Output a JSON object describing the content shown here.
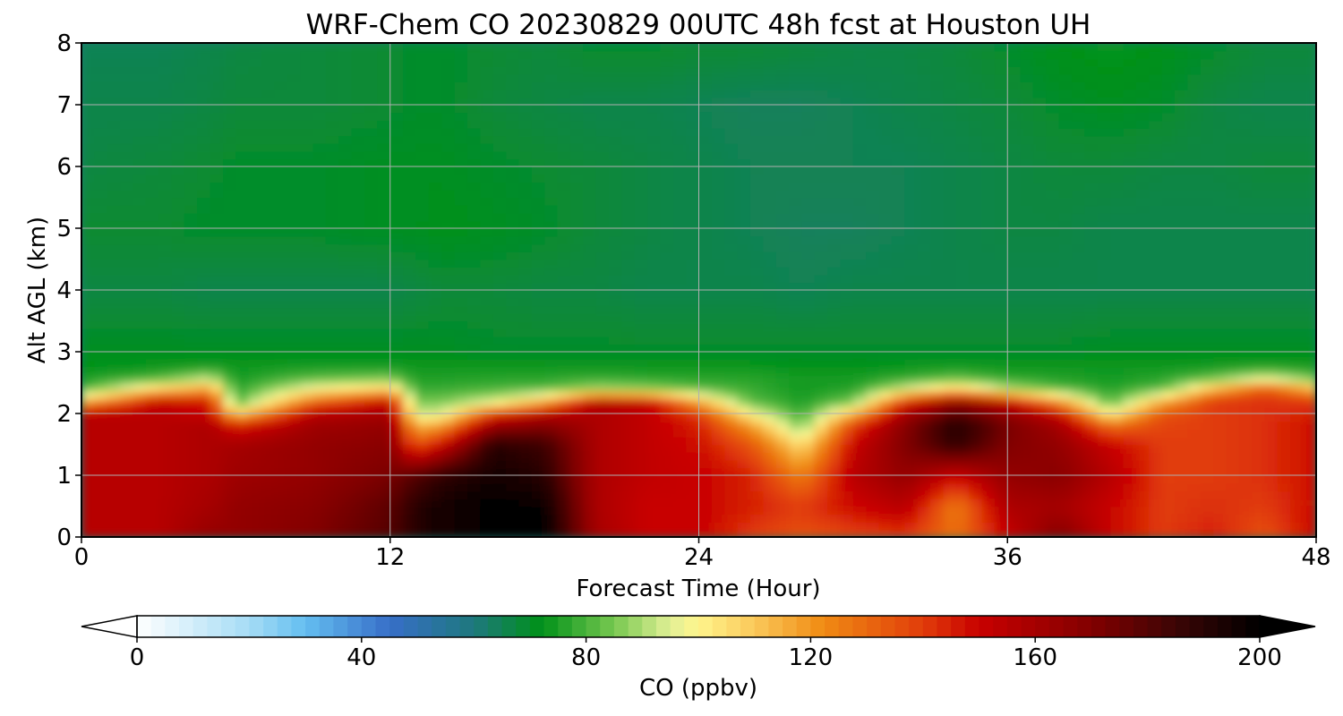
{
  "chart_data": {
    "type": "heatmap",
    "title": "WRF-Chem CO  20230829 00UTC 48h fcst at Houston UH",
    "xlabel": "Forecast Time (Hour)",
    "ylabel": "Alt AGL (km)",
    "xlim": [
      0,
      48
    ],
    "ylim": [
      0,
      8
    ],
    "xticks": [
      "0",
      "12",
      "24",
      "36",
      "48"
    ],
    "yticks": [
      "0",
      "1",
      "2",
      "3",
      "4",
      "5",
      "6",
      "7",
      "8"
    ],
    "grid": true,
    "x": [
      0,
      3,
      5,
      6,
      9,
      12,
      13,
      14,
      16,
      18,
      20,
      22,
      24,
      26,
      28,
      30,
      32,
      34,
      36,
      38,
      40,
      42,
      44,
      46,
      48
    ],
    "y": [
      0,
      0.5,
      1,
      1.5,
      1.8,
      2.0,
      2.2,
      2.4,
      2.6,
      2.8,
      3,
      4,
      5,
      6,
      7,
      8
    ],
    "values": [
      [
        155,
        155,
        165,
        165,
        170,
        180,
        190,
        195,
        200,
        200,
        160,
        150,
        150,
        140,
        135,
        138,
        140,
        128,
        150,
        170,
        150,
        140,
        145,
        135,
        150
      ],
      [
        155,
        155,
        160,
        165,
        168,
        178,
        190,
        195,
        200,
        198,
        158,
        150,
        150,
        145,
        140,
        148,
        155,
        125,
        158,
        160,
        150,
        140,
        142,
        140,
        148
      ],
      [
        155,
        155,
        158,
        162,
        165,
        172,
        180,
        188,
        195,
        190,
        158,
        152,
        150,
        145,
        125,
        155,
        165,
        150,
        165,
        168,
        155,
        140,
        140,
        142,
        148
      ],
      [
        155,
        155,
        158,
        160,
        165,
        168,
        135,
        150,
        190,
        185,
        158,
        152,
        148,
        135,
        105,
        150,
        170,
        188,
        170,
        165,
        150,
        140,
        140,
        142,
        148
      ],
      [
        155,
        155,
        158,
        145,
        162,
        165,
        115,
        120,
        165,
        170,
        158,
        152,
        145,
        120,
        85,
        140,
        168,
        192,
        172,
        160,
        130,
        138,
        140,
        142,
        148
      ],
      [
        155,
        155,
        150,
        110,
        155,
        160,
        95,
        95,
        140,
        155,
        158,
        152,
        140,
        100,
        78,
        115,
        160,
        180,
        165,
        150,
        100,
        135,
        140,
        142,
        145
      ],
      [
        115,
        150,
        145,
        80,
        130,
        150,
        85,
        85,
        95,
        115,
        155,
        150,
        115,
        82,
        75,
        85,
        140,
        165,
        150,
        120,
        80,
        115,
        140,
        142,
        140
      ],
      [
        80,
        110,
        120,
        76,
        100,
        110,
        78,
        78,
        80,
        82,
        90,
        88,
        82,
        78,
        74,
        76,
        95,
        110,
        92,
        82,
        76,
        82,
        115,
        135,
        115
      ],
      [
        74,
        78,
        88,
        74,
        80,
        82,
        75,
        75,
        76,
        76,
        77,
        76,
        76,
        76,
        74,
        74,
        76,
        80,
        76,
        75,
        74,
        76,
        80,
        90,
        80
      ],
      [
        72,
        73,
        74,
        73,
        74,
        74,
        73,
        73,
        73,
        73,
        73,
        73,
        73,
        73,
        72,
        72,
        73,
        74,
        73,
        73,
        73,
        73,
        74,
        75,
        74
      ],
      [
        71,
        71,
        71,
        71,
        71,
        71,
        71,
        71,
        70,
        70,
        70,
        70,
        70,
        70,
        70,
        70,
        70,
        70,
        70,
        70,
        71,
        71,
        71,
        71,
        71
      ],
      [
        67,
        67,
        66,
        66,
        66,
        66,
        67,
        68,
        68,
        67,
        67,
        66,
        66,
        66,
        65,
        66,
        66,
        66,
        66,
        66,
        66,
        66,
        66,
        66,
        66
      ],
      [
        69,
        69,
        70,
        70,
        70,
        71,
        71,
        72,
        71,
        70,
        68,
        67,
        66,
        65,
        64,
        64,
        65,
        66,
        67,
        67,
        66,
        66,
        66,
        66,
        66
      ],
      [
        67,
        68,
        69,
        70,
        70,
        71,
        71,
        71,
        70,
        69,
        68,
        67,
        66,
        65,
        65,
        65,
        65,
        66,
        67,
        68,
        68,
        67,
        67,
        68,
        68
      ],
      [
        66,
        66,
        67,
        68,
        68,
        69,
        70,
        70,
        68,
        67,
        66,
        66,
        65,
        64,
        64,
        65,
        66,
        67,
        68,
        70,
        71,
        70,
        67,
        66,
        66
      ],
      [
        65,
        65,
        66,
        67,
        68,
        69,
        70,
        70,
        69,
        68,
        70,
        70,
        69,
        69,
        68,
        67,
        67,
        68,
        70,
        72,
        73,
        72,
        70,
        68,
        68
      ]
    ],
    "colorbar": {
      "label": "CO  (ppbv)",
      "min": 0,
      "max": 200,
      "ticks": [
        "0",
        "40",
        "80",
        "120",
        "160",
        "200"
      ],
      "extend": "both"
    }
  }
}
